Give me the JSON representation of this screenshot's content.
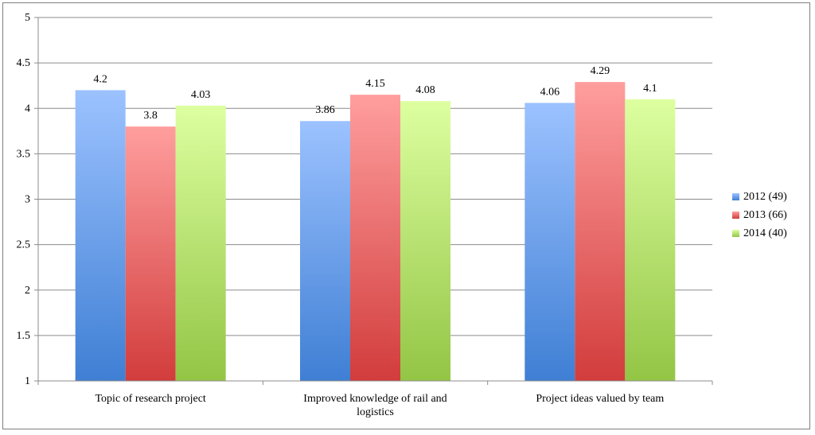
{
  "chart_data": {
    "type": "bar",
    "title": "",
    "xlabel": "",
    "ylabel": "",
    "ylim": [
      1,
      5
    ],
    "yticks": [
      "1",
      "1.5",
      "2",
      "2.5",
      "3",
      "3.5",
      "4",
      "4.5",
      "5"
    ],
    "grid": true,
    "legend_position": "right",
    "categories": [
      [
        "Topic of research project"
      ],
      [
        "Improved knowledge of rail and",
        "logistics"
      ],
      [
        "Project ideas valued by team"
      ]
    ],
    "series": [
      {
        "name": "2012 (49)",
        "values": [
          4.2,
          3.86,
          4.06
        ],
        "labels": [
          "4.2",
          "3.86",
          "4.06"
        ],
        "color_top": "#9cc2ff",
        "color_bottom": "#3f7fd4"
      },
      {
        "name": "2013 (66)",
        "values": [
          3.8,
          4.15,
          4.29
        ],
        "labels": [
          "3.8",
          "4.15",
          "4.29"
        ],
        "color_top": "#ff9e9e",
        "color_bottom": "#d23c3c"
      },
      {
        "name": "2014 (40)",
        "values": [
          4.03,
          4.08,
          4.1
        ],
        "labels": [
          "4.03",
          "4.08",
          "4.1"
        ],
        "color_top": "#ddffa0",
        "color_bottom": "#93c545"
      }
    ]
  }
}
